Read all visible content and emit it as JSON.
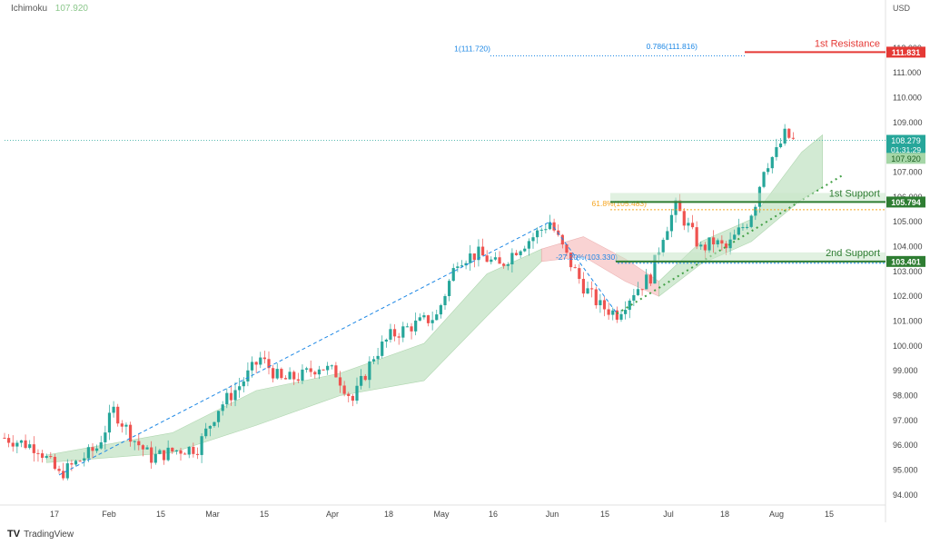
{
  "indicator": {
    "name": "Ichimoku",
    "value": "107.920"
  },
  "currency": "USD",
  "brand": "TradingView",
  "colors": {
    "up": "#26a69a",
    "down": "#ef5350",
    "cloud_bull": "#c8e6c9",
    "cloud_bear": "#f8c9c9",
    "resistance": "#e53935",
    "support": "#2e7d32",
    "fib": "#1e88e5",
    "fib_gold": "#f5a623",
    "trend": "#43a047"
  },
  "chart_data": {
    "type": "candlestick",
    "ylim": [
      93.7,
      113.2
    ],
    "x_ticks": [
      "17",
      "Feb",
      "15",
      "Mar",
      "15",
      "Apr",
      "18",
      "May",
      "16",
      "Jun",
      "15",
      "Jul",
      "18",
      "Aug",
      "15"
    ],
    "y_ticks": [
      "94.000",
      "95.000",
      "96.000",
      "97.000",
      "98.000",
      "99.000",
      "100.000",
      "101.000",
      "102.000",
      "103.000",
      "104.000",
      "105.000",
      "106.000",
      "107.000",
      "108.000",
      "109.000",
      "110.000",
      "111.000",
      "112.000"
    ],
    "price_path": [
      [
        0,
        96.3
      ],
      [
        8,
        95.9
      ],
      [
        13,
        94.8
      ],
      [
        18,
        95.4
      ],
      [
        22,
        95.9
      ],
      [
        26,
        97.4
      ],
      [
        31,
        96.2
      ],
      [
        35,
        95.5
      ],
      [
        41,
        95.8
      ],
      [
        46,
        95.9
      ],
      [
        51,
        97.5
      ],
      [
        56,
        98.4
      ],
      [
        61,
        99.5
      ],
      [
        66,
        98.6
      ],
      [
        71,
        98.8
      ],
      [
        75,
        99.2
      ],
      [
        79,
        98.9
      ],
      [
        83,
        97.8
      ],
      [
        88,
        99.6
      ],
      [
        92,
        100.4
      ],
      [
        97,
        100.8
      ],
      [
        103,
        101.2
      ],
      [
        108,
        103.5
      ],
      [
        113,
        103.7
      ],
      [
        118,
        103.2
      ],
      [
        122,
        103.9
      ],
      [
        126,
        104.4
      ],
      [
        130,
        105.0
      ],
      [
        134,
        103.6
      ],
      [
        138,
        102.4
      ],
      [
        142,
        101.6
      ],
      [
        146,
        101.3
      ],
      [
        150,
        102.2
      ],
      [
        154,
        102.8
      ],
      [
        157,
        104.5
      ],
      [
        160,
        105.6
      ],
      [
        163,
        104.8
      ],
      [
        166,
        103.9
      ],
      [
        169,
        104.2
      ],
      [
        172,
        103.9
      ],
      [
        175,
        104.6
      ],
      [
        177,
        105.0
      ],
      [
        179,
        105.8
      ],
      [
        181,
        107.2
      ],
      [
        184,
        107.8
      ],
      [
        186,
        108.5
      ],
      [
        188,
        108.28
      ]
    ],
    "cloud_segments": [
      {
        "sentiment": "bullish",
        "upper": [
          [
            10,
            95.6
          ],
          [
            40,
            96.5
          ],
          [
            60,
            98.2
          ],
          [
            80,
            98.9
          ],
          [
            100,
            100.1
          ],
          [
            115,
            102.9
          ],
          [
            128,
            103.9
          ]
        ],
        "lower": [
          [
            10,
            95.3
          ],
          [
            40,
            95.7
          ],
          [
            60,
            96.8
          ],
          [
            80,
            98.0
          ],
          [
            100,
            98.6
          ],
          [
            115,
            101.2
          ],
          [
            128,
            103.4
          ]
        ]
      },
      {
        "sentiment": "bearish",
        "upper": [
          [
            128,
            103.9
          ],
          [
            138,
            104.4
          ],
          [
            148,
            103.5
          ],
          [
            156,
            102.6
          ]
        ],
        "lower": [
          [
            128,
            103.4
          ],
          [
            138,
            103.6
          ],
          [
            148,
            102.6
          ],
          [
            156,
            102.0
          ]
        ]
      },
      {
        "sentiment": "bullish",
        "upper": [
          [
            156,
            102.6
          ],
          [
            166,
            104.2
          ],
          [
            178,
            105.1
          ],
          [
            190,
            107.8
          ],
          [
            195,
            108.5
          ]
        ],
        "lower": [
          [
            156,
            102.0
          ],
          [
            166,
            103.3
          ],
          [
            178,
            104.2
          ],
          [
            190,
            105.9
          ],
          [
            195,
            106.4
          ]
        ]
      }
    ],
    "levels": [
      {
        "label": "1st Resistance",
        "value": 111.831,
        "price_label": "111.831",
        "kind": "resistance"
      },
      {
        "label": "1st Support",
        "value": 105.794,
        "price_label": "105.794",
        "kind": "support"
      },
      {
        "label": "2nd Support",
        "value": 103.401,
        "price_label": "103.401",
        "kind": "support"
      }
    ],
    "fib_annotations": [
      {
        "label": "1(111.720)",
        "value": 111.72
      },
      {
        "label": "0.786(111.816)",
        "value": 111.816
      },
      {
        "label": "61.8%(105.483)",
        "value": 105.483
      },
      {
        "label": "-27.20%(103.330)",
        "value": 103.33
      }
    ],
    "trendlines": [
      {
        "style": "dashed",
        "from": [
          13,
          94.8
        ],
        "to": [
          130,
          105.0
        ]
      },
      {
        "style": "dashed",
        "from": [
          130,
          105.0
        ],
        "to": [
          146,
          101.3
        ]
      },
      {
        "style": "dotted",
        "from": [
          146,
          101.3
        ],
        "to": [
          200,
          106.9
        ]
      }
    ],
    "current_price": {
      "value": 108.279,
      "price_label": "108.279",
      "countdown": "01:31:29"
    },
    "ichimoku_value": {
      "value": 107.92,
      "price_label": "107.920"
    }
  }
}
